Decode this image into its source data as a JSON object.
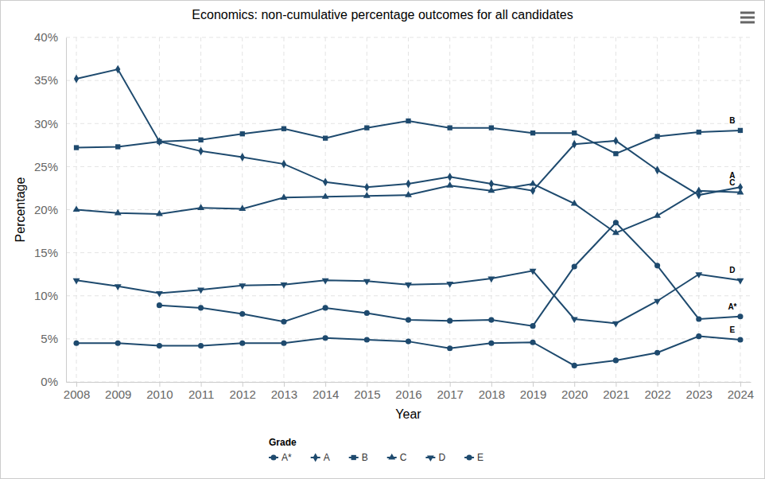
{
  "chart_data": {
    "type": "line",
    "title": "Economics: non-cumulative percentage outcomes for all candidates",
    "x_label": "Year",
    "y_label": "Percentage",
    "legend_title": "Grade",
    "legend": "bottom",
    "grid": true,
    "x": [
      2008,
      2009,
      2010,
      2011,
      2012,
      2013,
      2014,
      2015,
      2016,
      2017,
      2018,
      2019,
      2020,
      2021,
      2022,
      2023,
      2024
    ],
    "xlim": [
      2007.75,
      2024.25
    ],
    "xticks": [
      2008,
      2009,
      2010,
      2011,
      2012,
      2013,
      2014,
      2015,
      2016,
      2017,
      2018,
      2019,
      2020,
      2021,
      2022,
      2023,
      2024
    ],
    "ylim": [
      0,
      40
    ],
    "yticks": [
      {
        "value": 0,
        "label": "0%"
      },
      {
        "value": 5,
        "label": "5%"
      },
      {
        "value": 10,
        "label": "10%"
      },
      {
        "value": 15,
        "label": "15%"
      },
      {
        "value": 20,
        "label": "20%"
      },
      {
        "value": 25,
        "label": "25%"
      },
      {
        "value": 30,
        "label": "30%"
      },
      {
        "value": 35,
        "label": "35%"
      },
      {
        "value": 40,
        "label": "40%"
      }
    ],
    "series": [
      {
        "name": "A*",
        "color": "#1e4a6e",
        "marker": "circle",
        "values": [
          null,
          null,
          8.9,
          8.6,
          7.9,
          7.0,
          8.6,
          8.0,
          7.2,
          7.1,
          7.2,
          6.5,
          13.4,
          18.5,
          13.5,
          7.3,
          7.6
        ]
      },
      {
        "name": "A",
        "color": "#1e4a6e",
        "marker": "diamond",
        "values": [
          35.2,
          36.3,
          27.9,
          26.8,
          26.1,
          25.3,
          23.2,
          22.6,
          23.0,
          23.8,
          23.0,
          22.2,
          27.6,
          28.0,
          24.6,
          21.7,
          22.6
        ]
      },
      {
        "name": "B",
        "color": "#1e4a6e",
        "marker": "square",
        "values": [
          27.2,
          27.3,
          27.9,
          28.1,
          28.8,
          29.4,
          28.3,
          29.5,
          30.3,
          29.5,
          29.5,
          28.9,
          28.9,
          26.5,
          28.5,
          29.0,
          29.2
        ]
      },
      {
        "name": "C",
        "color": "#1e4a6e",
        "marker": "triangle",
        "values": [
          20.0,
          19.6,
          19.5,
          20.2,
          20.1,
          21.4,
          21.5,
          21.6,
          21.7,
          22.8,
          22.2,
          23.0,
          20.7,
          17.3,
          19.3,
          22.2,
          22.0
        ]
      },
      {
        "name": "D",
        "color": "#1e4a6e",
        "marker": "triangle-down",
        "values": [
          11.8,
          11.1,
          10.3,
          10.7,
          11.2,
          11.3,
          11.8,
          11.7,
          11.3,
          11.4,
          12.0,
          12.9,
          7.3,
          6.8,
          9.4,
          12.5,
          11.8
        ]
      },
      {
        "name": "E",
        "color": "#1e4a6e",
        "marker": "circle",
        "values": [
          4.5,
          4.5,
          4.2,
          4.2,
          4.5,
          4.5,
          5.1,
          4.9,
          4.7,
          3.9,
          4.5,
          4.6,
          1.9,
          2.5,
          3.4,
          5.3,
          4.9
        ]
      }
    ]
  }
}
